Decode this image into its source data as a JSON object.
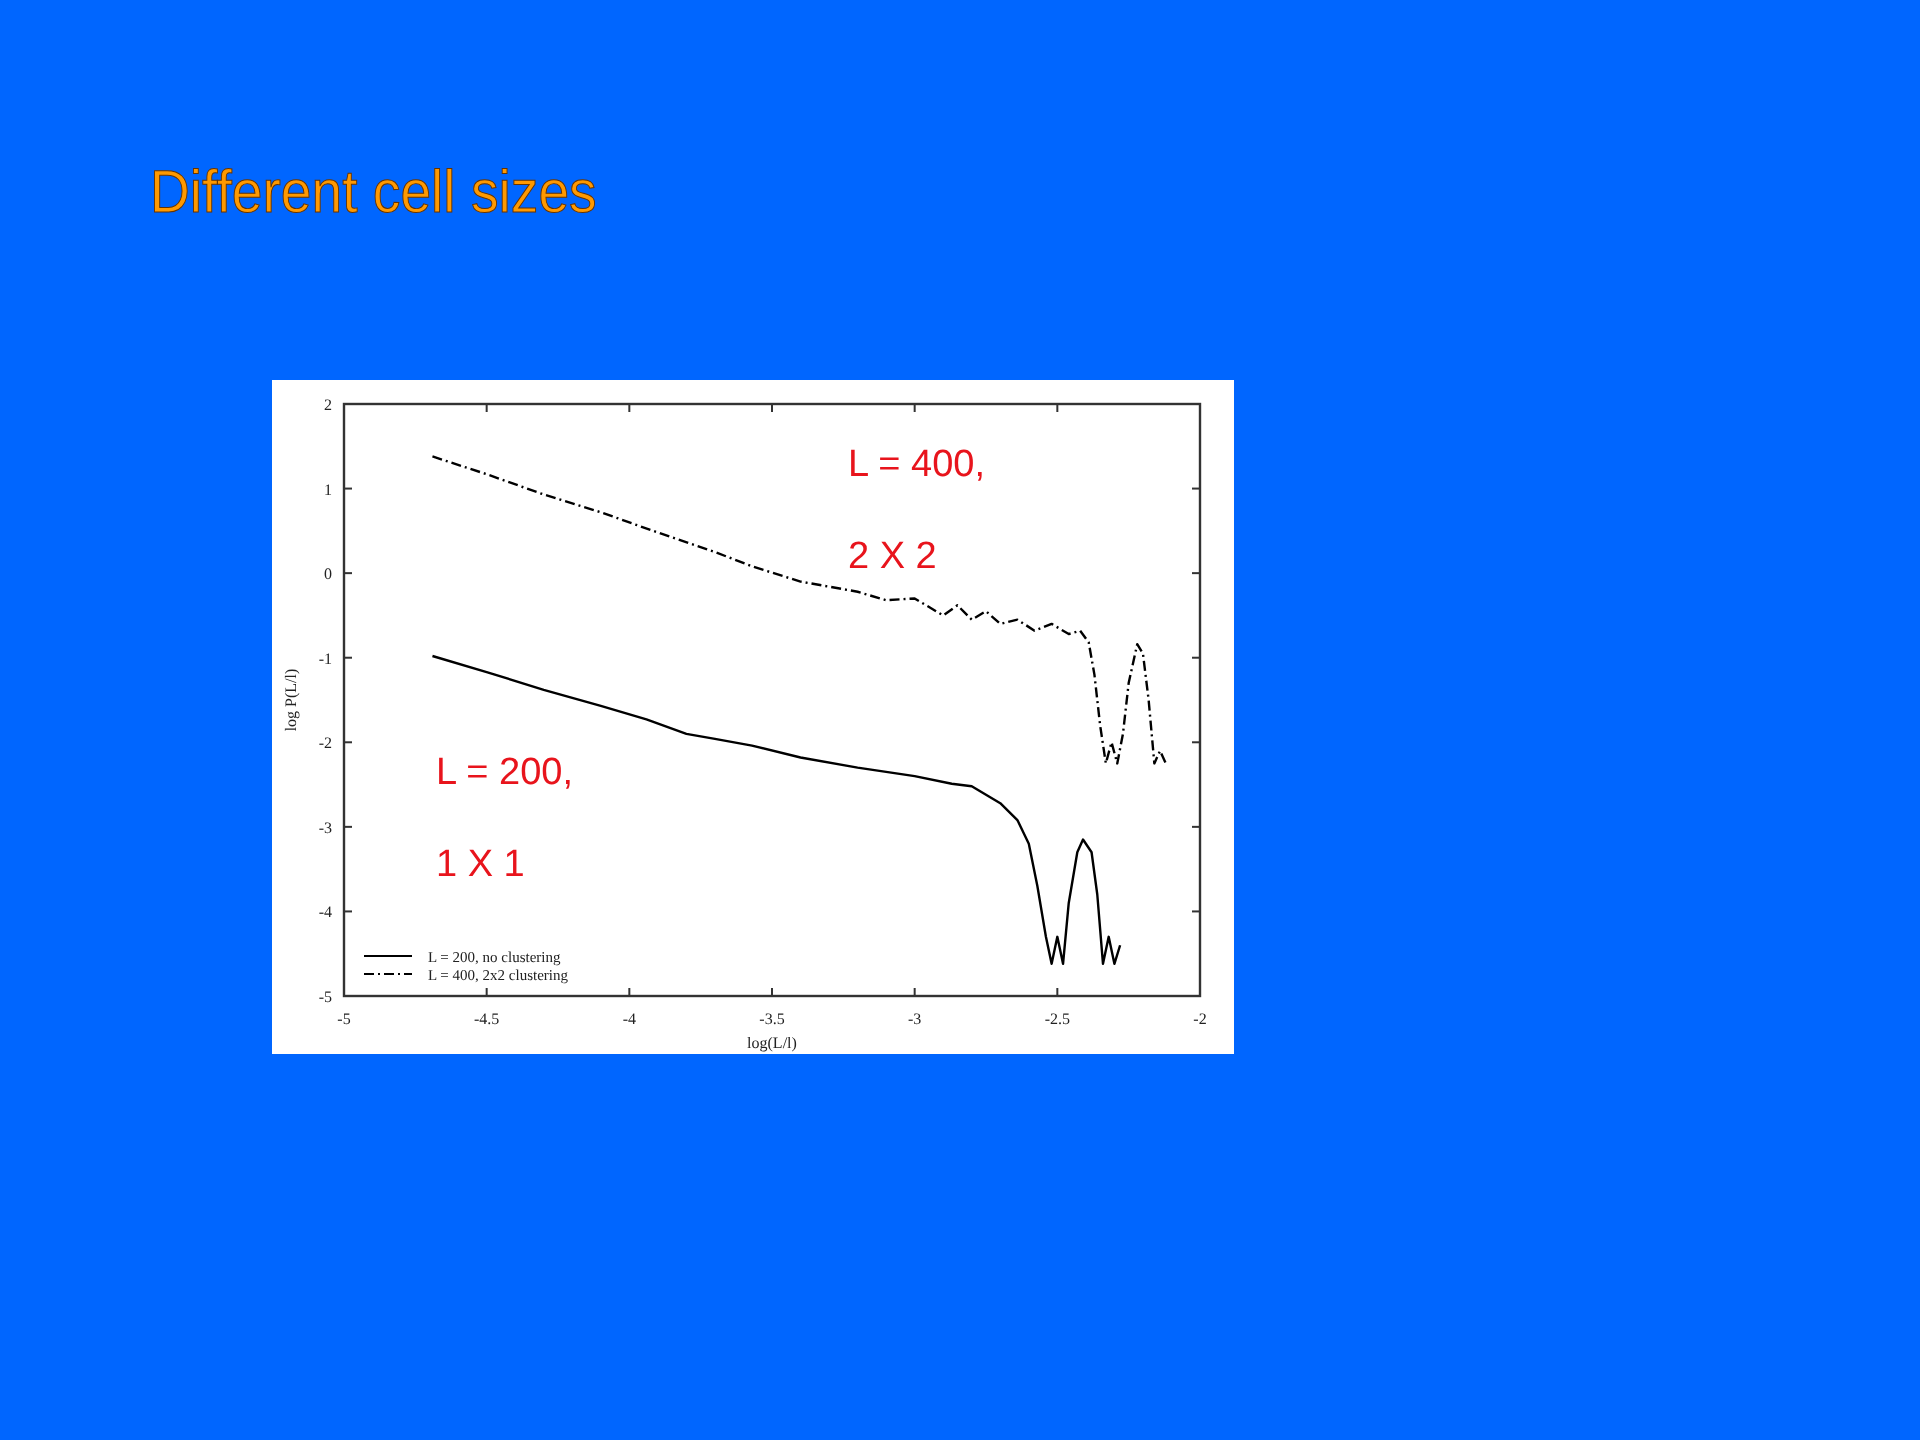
{
  "chart_data": {
    "type": "line",
    "title": "Different cell sizes",
    "xlabel": "log(L/l)",
    "ylabel": "log P(L/l)",
    "xlim": [
      -5,
      -2
    ],
    "xticks": [
      -5,
      -4.5,
      -4,
      -3.5,
      -3,
      -2.5,
      -2
    ],
    "ylim": [
      -5,
      2
    ],
    "yticks": [
      -5,
      -4,
      -3,
      -2,
      -1,
      0,
      1,
      2
    ],
    "grid": false,
    "legend": "bottom left",
    "annotations": [
      "L = 400,",
      "2 X 2",
      "L = 200,",
      "1 X 1"
    ],
    "series": [
      {
        "name": "L = 200, no clustering",
        "color": "#000000",
        "line_style": "solid",
        "x": [
          -4.69,
          -4.5,
          -4.3,
          -4.1,
          -3.94,
          -3.8,
          -3.7,
          -3.57,
          -3.4,
          -3.2,
          -3.0,
          -2.87,
          -2.8,
          -2.75,
          -2.7,
          -2.64,
          -2.6,
          -2.57,
          -2.54,
          -2.52,
          -2.5,
          -2.48,
          -2.46,
          -2.43,
          -2.41,
          -2.38,
          -2.36,
          -2.34,
          -2.32,
          -2.3,
          -2.28
        ],
        "values": [
          -0.98,
          -1.17,
          -1.38,
          -1.57,
          -1.73,
          -1.9,
          -1.96,
          -2.04,
          -2.18,
          -2.3,
          -2.4,
          -2.49,
          -2.52,
          -2.62,
          -2.72,
          -2.92,
          -3.2,
          -3.7,
          -4.3,
          -4.62,
          -4.3,
          -4.62,
          -3.9,
          -3.3,
          -3.15,
          -3.3,
          -3.8,
          -4.62,
          -4.3,
          -4.62,
          -4.4
        ]
      },
      {
        "name": "L = 400, 2x2 clustering",
        "color": "#000000",
        "line_style": "dashdot",
        "x": [
          -4.69,
          -4.5,
          -4.3,
          -4.1,
          -3.9,
          -3.7,
          -3.57,
          -3.4,
          -3.2,
          -3.1,
          -3.0,
          -2.9,
          -2.85,
          -2.8,
          -2.75,
          -2.7,
          -2.64,
          -2.58,
          -2.52,
          -2.46,
          -2.42,
          -2.39,
          -2.37,
          -2.35,
          -2.33,
          -2.31,
          -2.29,
          -2.27,
          -2.25,
          -2.22,
          -2.2,
          -2.18,
          -2.16,
          -2.14,
          -2.12
        ],
        "values": [
          1.38,
          1.17,
          0.93,
          0.72,
          0.48,
          0.25,
          0.08,
          -0.1,
          -0.22,
          -0.32,
          -0.3,
          -0.5,
          -0.38,
          -0.55,
          -0.45,
          -0.6,
          -0.55,
          -0.68,
          -0.6,
          -0.72,
          -0.68,
          -0.82,
          -1.2,
          -1.8,
          -2.25,
          -2.0,
          -2.25,
          -1.9,
          -1.3,
          -0.84,
          -0.95,
          -1.5,
          -2.25,
          -2.1,
          -2.25
        ]
      }
    ]
  }
}
